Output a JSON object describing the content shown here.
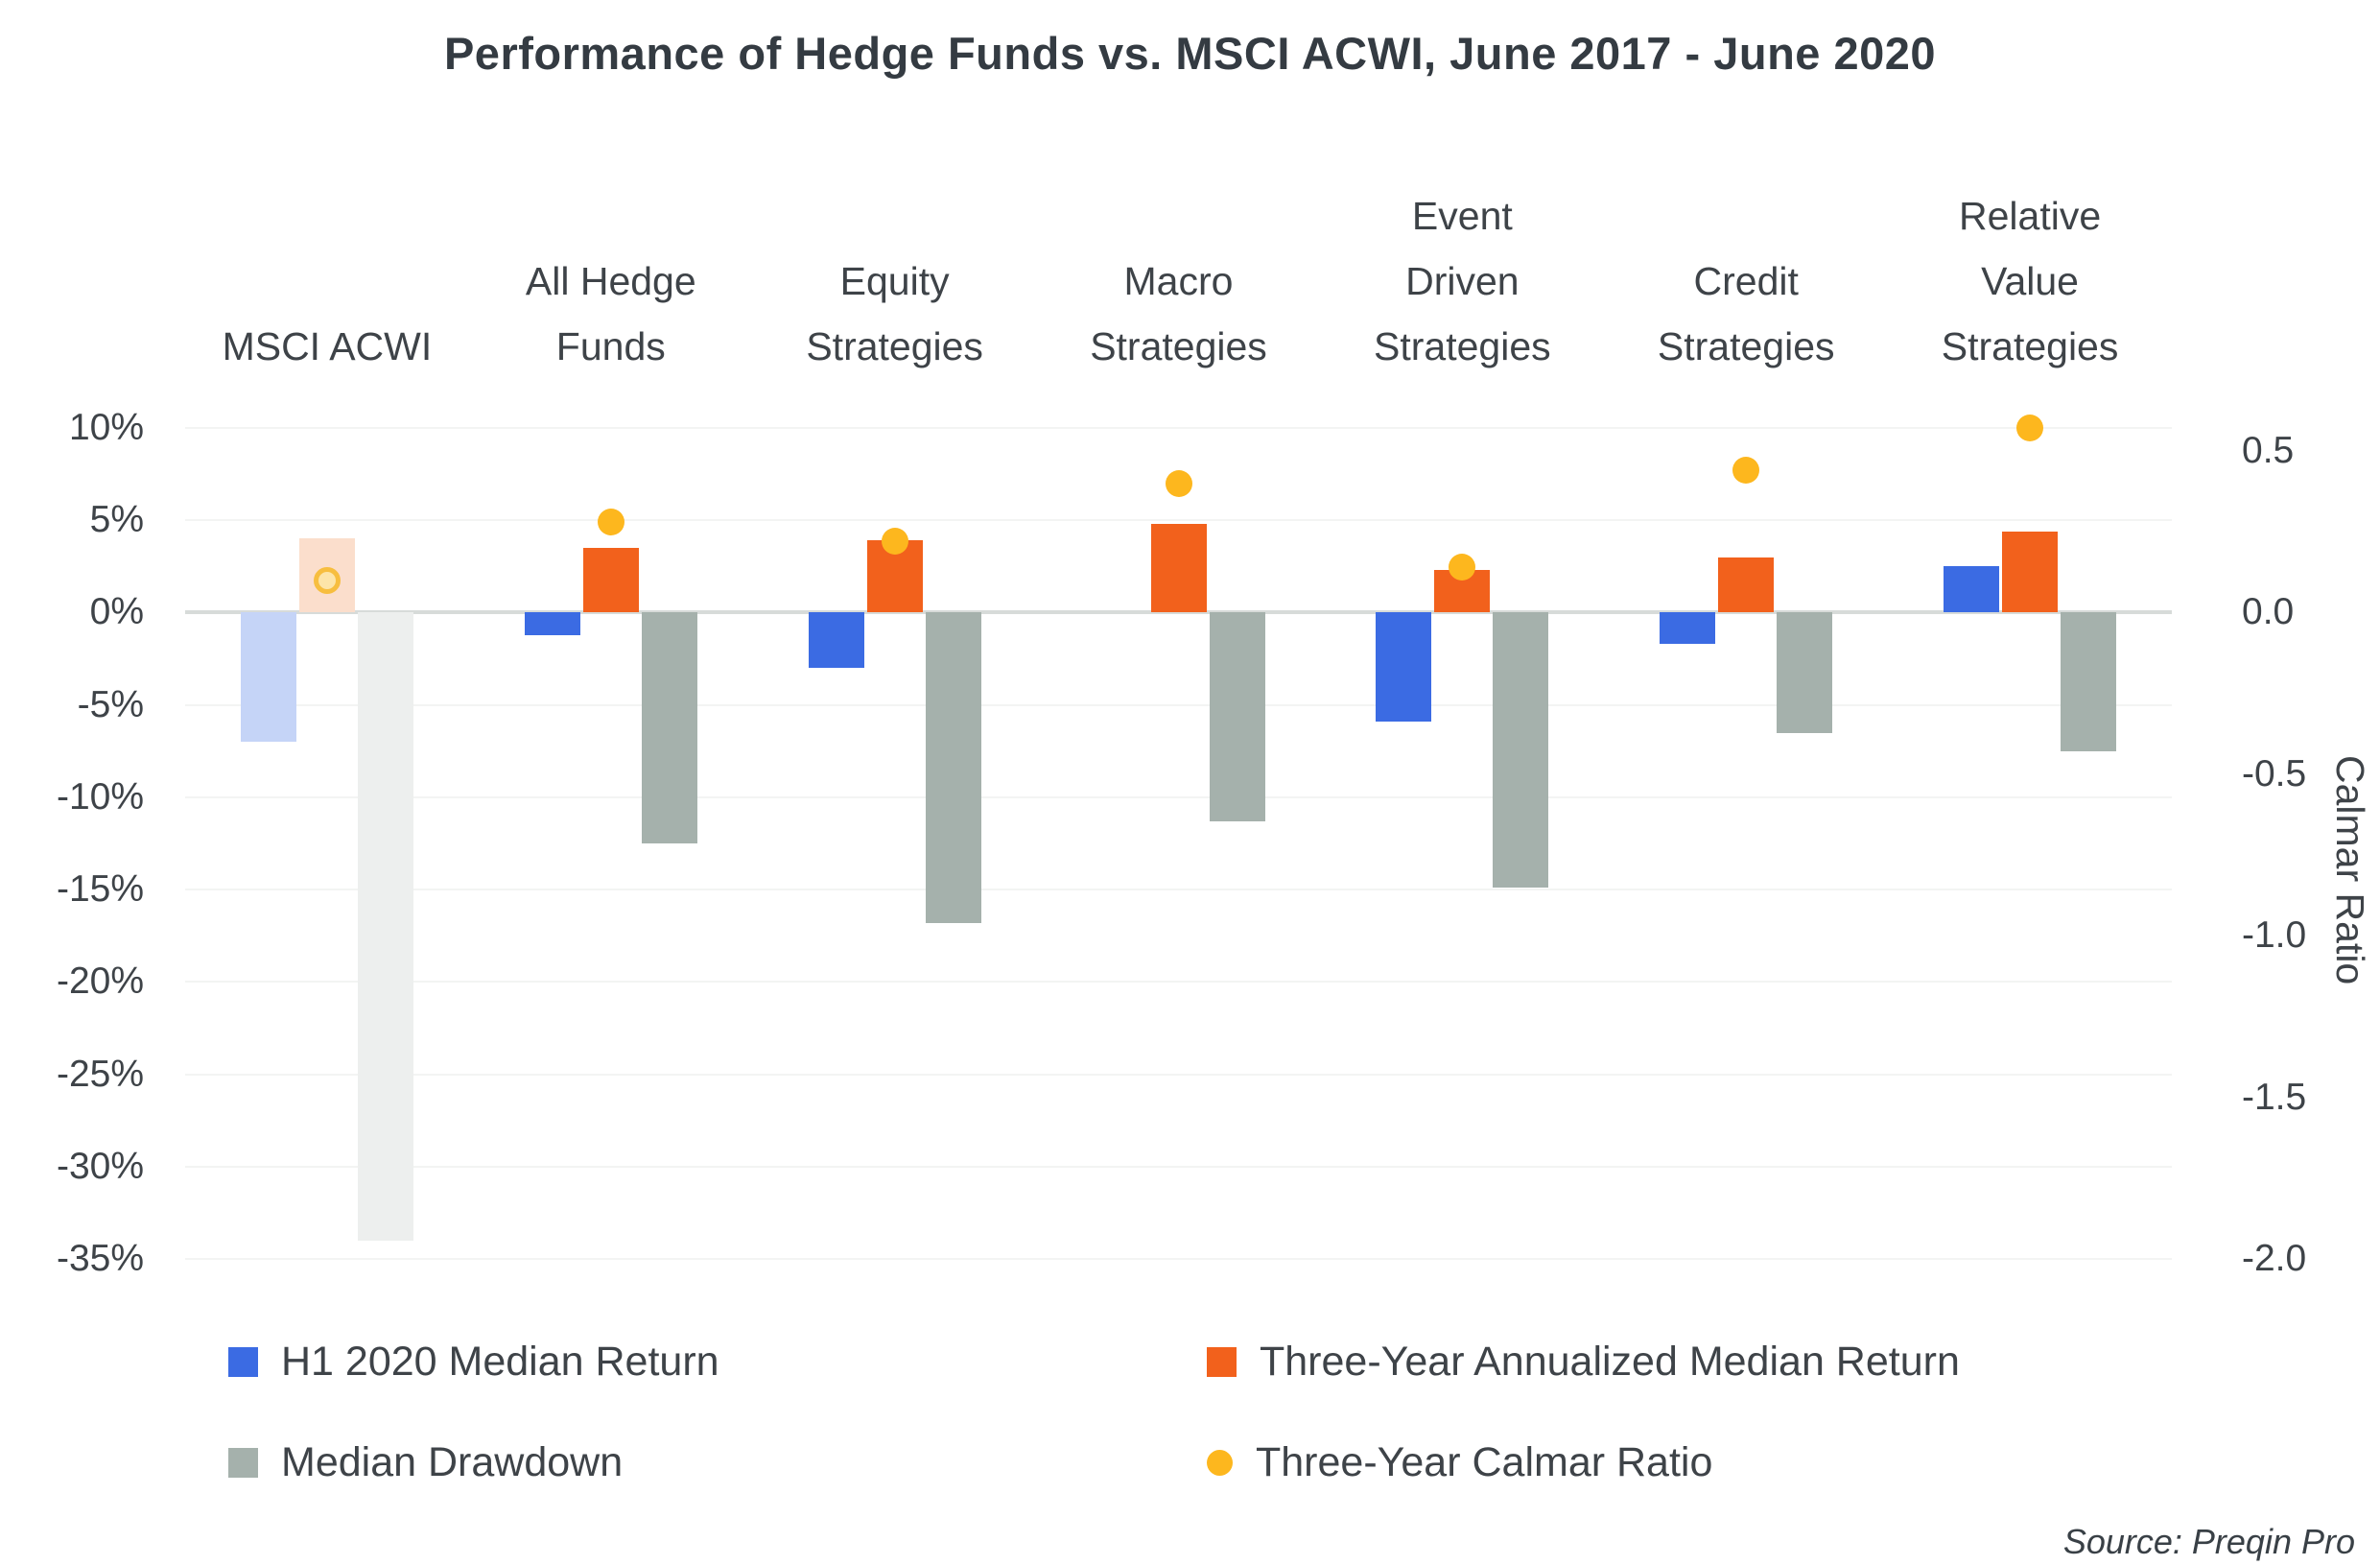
{
  "title": "Performance of Hedge Funds vs. MSCI ACWI, June 2017 - June 2020",
  "source": "Source: Preqin Pro",
  "colors": {
    "title_text": "#343B42",
    "axis_text": "#3E4348",
    "gridline": "#F3F4F3",
    "zero_line": "#D7DBD9",
    "h1_blue": "#3B6BE3",
    "h1_blue_muted": "#C5D4F7",
    "orange": "#F2611C",
    "orange_muted": "#FBDECC",
    "gray": "#A5B1AC",
    "gray_muted": "#EDEFEE",
    "yellow": "#FDB71E",
    "yellow_muted_fill": "#FDE5A9",
    "yellow_muted_ring": "#F7BE3F"
  },
  "chart_data": {
    "type": "bar",
    "subtype": "grouped bars with scatter dots on secondary axis",
    "title": "Performance of Hedge Funds vs. MSCI ACWI, June 2017 - June 2020",
    "categories": [
      "MSCI ACWI",
      "All Hedge Funds",
      "Equity Strategies",
      "Macro Strategies",
      "Event Driven Strategies",
      "Credit Strategies",
      "Relative Value Strategies"
    ],
    "category_lines": [
      [
        "MSCI ACWI"
      ],
      [
        "All Hedge",
        "Funds"
      ],
      [
        "Equity",
        "Strategies"
      ],
      [
        "Macro",
        "Strategies"
      ],
      [
        "Event",
        "Driven",
        "Strategies"
      ],
      [
        "Credit",
        "Strategies"
      ],
      [
        "Relative",
        "Value",
        "Strategies"
      ]
    ],
    "muted_category_index": 0,
    "left_axis": {
      "unit": "%",
      "min": -35,
      "max": 10,
      "ticks": [
        {
          "label": "10%",
          "value": 10
        },
        {
          "label": "5%",
          "value": 5
        },
        {
          "label": "0%",
          "value": 0
        },
        {
          "label": "-5%",
          "value": -5
        },
        {
          "label": "-10%",
          "value": -10
        },
        {
          "label": "-15%",
          "value": -15
        },
        {
          "label": "-20%",
          "value": -20
        },
        {
          "label": "-25%",
          "value": -25
        },
        {
          "label": "-30%",
          "value": -30
        },
        {
          "label": "-35%",
          "value": -35
        }
      ]
    },
    "right_axis": {
      "label": "Calmar Ratio",
      "min": -2.0,
      "max": 0.5,
      "ticks": [
        {
          "label": "0.5",
          "value": 0.5
        },
        {
          "label": "0.0",
          "value": 0.0
        },
        {
          "label": "-0.5",
          "value": -0.5
        },
        {
          "label": "-1.0",
          "value": -1.0
        },
        {
          "label": "-1.5",
          "value": -1.5
        },
        {
          "label": "-2.0",
          "value": -2.0
        }
      ]
    },
    "series": [
      {
        "id": "h1-2020-median-return",
        "name": "H1 2020 Median Return",
        "kind": "bar",
        "axis": "left",
        "color": "#3B6BE3",
        "muted_color": "#C5D4F7",
        "values": [
          -7.0,
          -1.2,
          -3.0,
          0.0,
          -5.9,
          -1.7,
          2.5
        ]
      },
      {
        "id": "three-year-annualized-median-return",
        "name": "Three-Year Annualized Median Return",
        "kind": "bar",
        "axis": "left",
        "color": "#F2611C",
        "muted_color": "#FBDECC",
        "values": [
          4.0,
          3.5,
          3.9,
          4.8,
          2.3,
          3.0,
          4.4
        ]
      },
      {
        "id": "median-drawdown",
        "name": "Median Drawdown",
        "kind": "bar",
        "axis": "left",
        "color": "#A5B1AC",
        "muted_color": "#EDEFEE",
        "values": [
          -34.0,
          -12.5,
          -16.8,
          -11.3,
          -14.9,
          -6.5,
          -7.5
        ]
      },
      {
        "id": "three-year-calmar-ratio",
        "name": "Three-Year Calmar Ratio",
        "kind": "dot",
        "axis": "right",
        "color": "#FDB71E",
        "muted_fill": "#FDE5A9",
        "muted_ring": "#F7BE3F",
        "values": [
          0.1,
          0.28,
          0.22,
          0.4,
          0.14,
          0.44,
          0.57
        ]
      }
    ]
  }
}
